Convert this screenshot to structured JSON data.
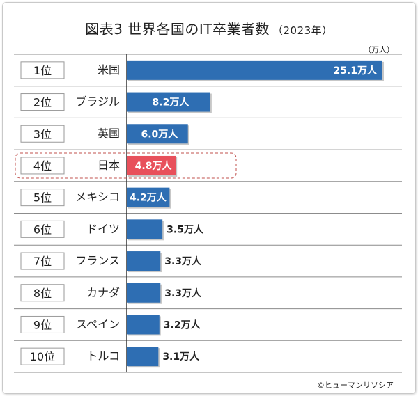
{
  "chart_data": {
    "type": "bar",
    "orientation": "horizontal",
    "title": "図表3 世界各国のIT卒業者数",
    "title_year": "（2023年）",
    "unit": "（万人）",
    "credit": "©ヒューマンリソシア",
    "ranks": [
      "1位",
      "2位",
      "3位",
      "4位",
      "5位",
      "6位",
      "7位",
      "8位",
      "9位",
      "10位"
    ],
    "categories": [
      "米国",
      "ブラジル",
      "英国",
      "日本",
      "メキシコ",
      "ドイツ",
      "フランス",
      "カナダ",
      "スペイン",
      "トルコ"
    ],
    "values": [
      25.1,
      8.2,
      6.0,
      4.8,
      4.2,
      3.5,
      3.3,
      3.3,
      3.2,
      3.1
    ],
    "value_labels": [
      "25.1万人",
      "8.2万人",
      "6.0万人",
      "4.8万人",
      "4.2万人",
      "3.5万人",
      "3.3万人",
      "3.3万人",
      "3.2万人",
      "3.1万人"
    ],
    "highlight_index": 3,
    "colors": {
      "bar": "#2e6eb3",
      "highlight": "#e8505b",
      "grid": "#8c8c8c"
    },
    "grid": true,
    "legend": "none"
  }
}
